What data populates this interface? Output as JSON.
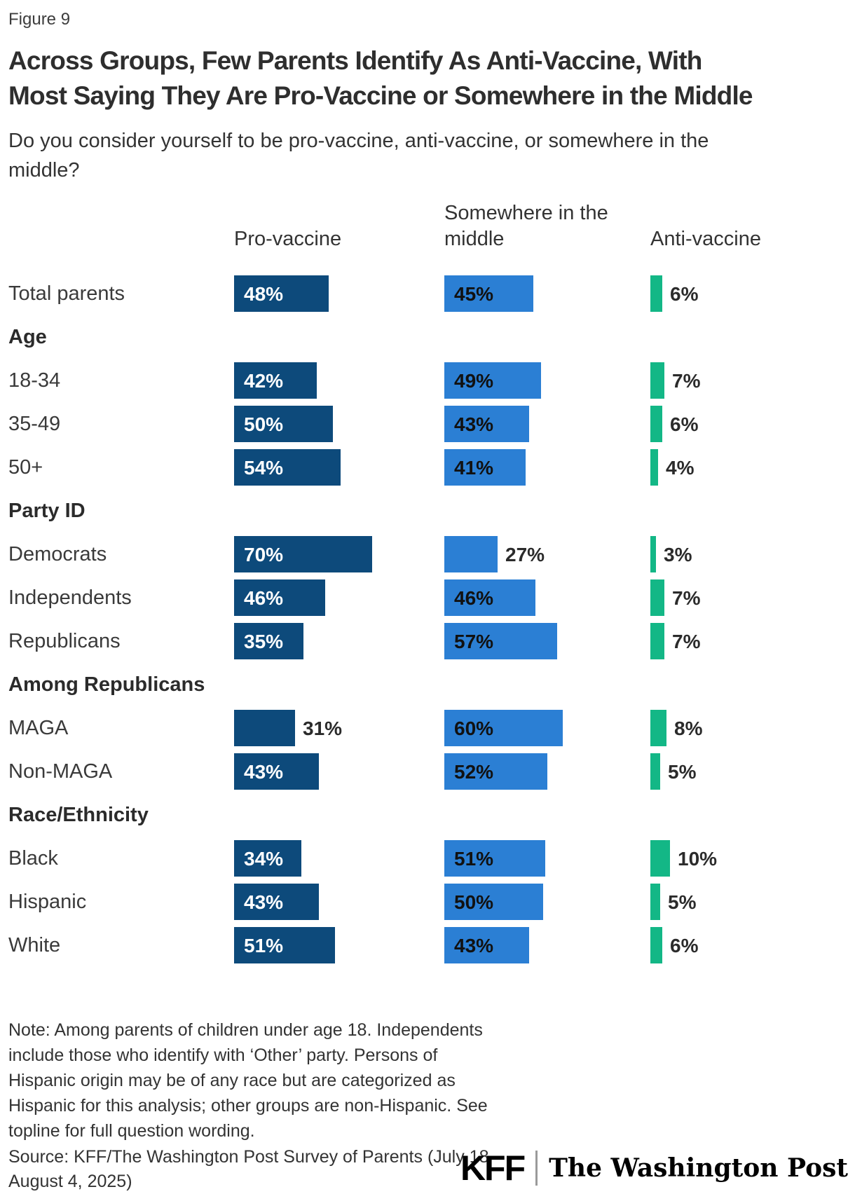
{
  "figure_label": "Figure 9",
  "title": {
    "line1": "Across Groups, Few Parents Identify As Anti-Vaccine, With",
    "line2": "Most Saying They Are Pro-Vaccine or Somewhere in the Middle"
  },
  "subtitle": "Do you consider yourself to be pro-vaccine, anti-vaccine, or somewhere in the middle?",
  "chart_data": {
    "type": "bar",
    "orientation": "horizontal",
    "unit": "percent",
    "xlim": [
      0,
      100
    ],
    "value_suffix": "%",
    "columns": [
      "Pro-vaccine",
      "Somewhere in the middle",
      "Anti-vaccine"
    ],
    "colors": {
      "pro": "#0d4a7b",
      "middle": "#2b7fd4",
      "anti": "#13b786"
    },
    "rows": [
      {
        "type": "bar",
        "label": "Total parents",
        "values": {
          "pro": 48,
          "middle": 45,
          "anti": 6
        }
      },
      {
        "type": "section",
        "label": "Age"
      },
      {
        "type": "bar",
        "label": "18-34",
        "values": {
          "pro": 42,
          "middle": 49,
          "anti": 7
        }
      },
      {
        "type": "bar",
        "label": "35-49",
        "values": {
          "pro": 50,
          "middle": 43,
          "anti": 6
        }
      },
      {
        "type": "bar",
        "label": "50+",
        "values": {
          "pro": 54,
          "middle": 41,
          "anti": 4
        }
      },
      {
        "type": "section",
        "label": "Party ID"
      },
      {
        "type": "bar",
        "label": "Democrats",
        "values": {
          "pro": 70,
          "middle": 27,
          "anti": 3
        }
      },
      {
        "type": "bar",
        "label": "Independents",
        "values": {
          "pro": 46,
          "middle": 46,
          "anti": 7
        }
      },
      {
        "type": "bar",
        "label": "Republicans",
        "values": {
          "pro": 35,
          "middle": 57,
          "anti": 7
        }
      },
      {
        "type": "section",
        "label": "Among Republicans"
      },
      {
        "type": "bar",
        "label": "MAGA",
        "values": {
          "pro": 31,
          "middle": 60,
          "anti": 8
        }
      },
      {
        "type": "bar",
        "label": "Non-MAGA",
        "values": {
          "pro": 43,
          "middle": 52,
          "anti": 5
        }
      },
      {
        "type": "section",
        "label": "Race/Ethnicity"
      },
      {
        "type": "bar",
        "label": "Black",
        "values": {
          "pro": 34,
          "middle": 51,
          "anti": 10
        }
      },
      {
        "type": "bar",
        "label": "Hispanic",
        "values": {
          "pro": 43,
          "middle": 50,
          "anti": 5
        }
      },
      {
        "type": "bar",
        "label": "White",
        "values": {
          "pro": 51,
          "middle": 43,
          "anti": 6
        }
      }
    ]
  },
  "note": "Note: Among parents of children under age 18. Independents include those who identify with ‘Other’ party. Persons of Hispanic origin may be of any race but are categorized as Hispanic for this analysis; other groups are non-Hispanic. See topline for full question wording.",
  "source": "Source: KFF/The Washington Post Survey of Parents (July 18-August 4, 2025)",
  "footer_logos": {
    "kff": "KFF",
    "washington_post": "The Washington Post"
  }
}
